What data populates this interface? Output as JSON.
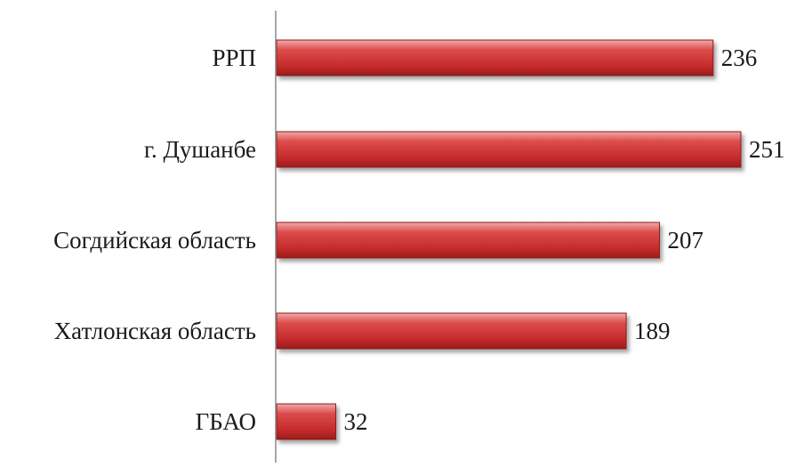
{
  "chart_data": {
    "type": "bar",
    "orientation": "horizontal",
    "categories": [
      "РРП",
      "г. Душанбе",
      "Согдийская область",
      "Хатлонская область",
      "ГБАО"
    ],
    "values": [
      236,
      251,
      207,
      189,
      32
    ],
    "data_labels": [
      "236",
      "251",
      "207",
      "189",
      "32"
    ],
    "title": "",
    "xlabel": "",
    "ylabel": "",
    "xlim": [
      0,
      260
    ],
    "grid": false,
    "legend": "none",
    "bar_color": "#c62f2f"
  }
}
